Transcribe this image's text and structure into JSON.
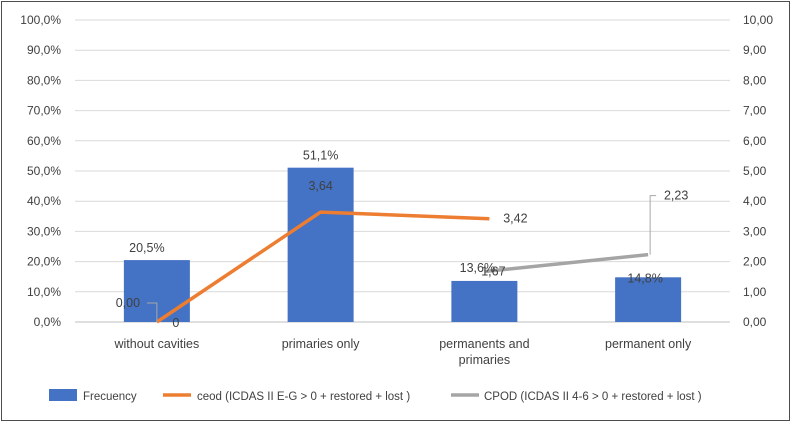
{
  "chart_data": {
    "type": "bar",
    "categories": [
      [
        "without cavities"
      ],
      [
        "primaries only"
      ],
      [
        "permanents and",
        "primaries"
      ],
      [
        "permanent only"
      ]
    ],
    "left_axis": {
      "ylim": [
        0,
        100
      ],
      "ticks": [
        "0,0%",
        "10,0%",
        "20,0%",
        "30,0%",
        "40,0%",
        "50,0%",
        "60,0%",
        "70,0%",
        "80,0%",
        "90,0%",
        "100,0%"
      ]
    },
    "right_axis": {
      "ylim": [
        0,
        10
      ],
      "ticks": [
        "0,00",
        "1,00",
        "2,00",
        "3,00",
        "4,00",
        "5,00",
        "6,00",
        "7,00",
        "8,00",
        "9,00",
        "10,00"
      ]
    },
    "grid": true,
    "legend_position": "bottom",
    "series": [
      {
        "name": "Frecuency",
        "kind": "bar",
        "axis": "left",
        "color": "#4472c4",
        "values": [
          20.5,
          51.1,
          13.6,
          14.8
        ],
        "labels": [
          "20,5%",
          "51,1%",
          "13,6%",
          "14,8%"
        ]
      },
      {
        "name": "ceod (ICDAS II E-G > 0 + restored + lost )",
        "kind": "line",
        "axis": "right",
        "color": "#ed7d31",
        "values": [
          0.0,
          3.64,
          3.42,
          null
        ],
        "labels": [
          "0",
          "3,64",
          "3,42",
          ""
        ]
      },
      {
        "name": "CPOD (ICDAS II 4-6 > 0 + restored + lost )",
        "kind": "line",
        "axis": "right",
        "color": "#a5a5a5",
        "values": [
          0.0,
          null,
          1.67,
          2.23
        ],
        "labels": [
          "0,00",
          "",
          "1,67",
          "2,23"
        ]
      }
    ]
  }
}
